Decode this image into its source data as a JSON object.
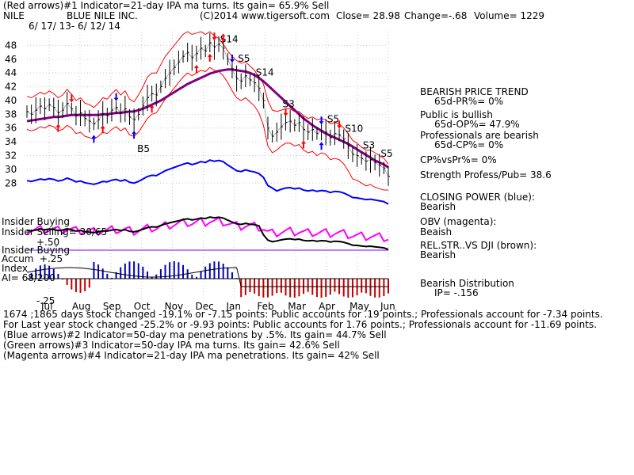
{
  "header": {
    "line1": "(Red arrows)#1 Indicator=21-day IPA ma turns. Its gain= 65.9% Sell",
    "ticker": "NILE",
    "company": "BLUE NILE INC.",
    "copyright": "(C)2014 www.tigersoft.com",
    "close": "Close=  28.98",
    "change": "Change=-.68",
    "volume": "Volume= 1229",
    "date_range": "6/ 17/ 13-  6/ 12/ 14"
  },
  "chart_data": {
    "type": "line",
    "title": "BLUE NILE INC.",
    "xlabel": "",
    "ylabel": "",
    "ylim": [
      27,
      50
    ],
    "yticks": [
      28,
      30,
      32,
      34,
      36,
      38,
      40,
      42,
      44,
      46,
      48
    ],
    "months": [
      "Jul",
      "Aug",
      "Sep",
      "Oct",
      "Nov",
      "Dec",
      "Jan",
      "Feb",
      "Mar",
      "Apr",
      "May",
      "Jun"
    ],
    "price_close": [
      38.4,
      38.0,
      38.6,
      39.2,
      38.8,
      39.4,
      39.0,
      38.2,
      38.6,
      39.6,
      38.8,
      37.8,
      38.2,
      37.4,
      37.0,
      36.6,
      37.2,
      38.0,
      37.8,
      38.6,
      39.0,
      38.2,
      38.8,
      37.6,
      37.2,
      38.0,
      39.2,
      40.4,
      41.0,
      40.8,
      42.0,
      43.2,
      44.0,
      44.8,
      45.6,
      46.4,
      47.0,
      46.2,
      46.8,
      47.6,
      47.2,
      48.4,
      47.8,
      48.2,
      47.6,
      46.0,
      44.6,
      43.2,
      42.8,
      43.6,
      43.0,
      42.6,
      41.8,
      40.0,
      36.0,
      34.8,
      35.4,
      36.2,
      36.8,
      37.0,
      36.4,
      36.8,
      35.8,
      35.4,
      35.8,
      35.2,
      35.6,
      35.4,
      34.6,
      35.2,
      35.0,
      34.4,
      33.4,
      32.2,
      32.0,
      31.6,
      31.2,
      31.4,
      31.0,
      30.6,
      30.2,
      29.0
    ],
    "ma_21d_upper_band": [
      40.6,
      40.4,
      40.8,
      41.2,
      40.9,
      41.4,
      41.0,
      40.4,
      40.8,
      41.6,
      40.9,
      40.0,
      40.4,
      39.6,
      39.4,
      39.0,
      39.6,
      40.4,
      40.2,
      41.0,
      41.6,
      40.8,
      41.4,
      40.2,
      39.8,
      40.8,
      42.0,
      43.4,
      44.0,
      44.0,
      45.2,
      46.4,
      47.2,
      48.0,
      48.8,
      49.6,
      50.0,
      49.6,
      49.8,
      50.0,
      49.6,
      50.0,
      49.4,
      49.0,
      48.2,
      47.2,
      46.4,
      45.8,
      45.4,
      45.6,
      45.0,
      44.4,
      43.4,
      42.4,
      40.0,
      38.6,
      38.4,
      38.6,
      38.8,
      38.8,
      38.4,
      38.4,
      37.8,
      37.4,
      37.6,
      37.2,
      37.4,
      37.2,
      36.6,
      36.8,
      36.6,
      36.0,
      35.2,
      34.2,
      33.8,
      33.2,
      32.8,
      32.8,
      32.4,
      32.0,
      31.6,
      30.8
    ],
    "ma_21d_lower_band": [
      35.8,
      35.6,
      35.8,
      36.2,
      36.0,
      36.4,
      36.2,
      35.6,
      35.8,
      36.4,
      36.0,
      35.2,
      35.4,
      34.8,
      34.6,
      34.4,
      34.8,
      35.4,
      35.2,
      35.8,
      36.2,
      35.6,
      36.0,
      35.0,
      34.8,
      35.4,
      36.4,
      37.4,
      38.0,
      38.2,
      39.2,
      40.2,
      41.0,
      41.8,
      42.6,
      43.4,
      44.0,
      43.6,
      44.0,
      44.4,
      44.2,
      44.8,
      44.4,
      44.2,
      43.6,
      42.6,
      41.4,
      40.4,
      40.0,
      40.4,
      39.8,
      39.2,
      38.2,
      36.4,
      33.4,
      32.4,
      32.8,
      33.4,
      33.8,
      33.8,
      33.4,
      33.6,
      32.8,
      32.4,
      32.6,
      32.0,
      32.4,
      32.2,
      31.4,
      31.6,
      31.4,
      30.8,
      29.8,
      28.6,
      28.4,
      28.0,
      27.6,
      27.8,
      27.4,
      27.2,
      27.0,
      27.0
    ],
    "ma_65d": [
      37.0,
      37.1,
      37.2,
      37.3,
      37.4,
      37.5,
      37.6,
      37.6,
      37.7,
      37.8,
      37.9,
      37.9,
      37.9,
      37.9,
      37.9,
      37.9,
      37.9,
      38.0,
      38.0,
      38.1,
      38.2,
      38.2,
      38.3,
      38.4,
      38.4,
      38.6,
      38.8,
      39.1,
      39.4,
      39.7,
      40.0,
      40.4,
      40.8,
      41.2,
      41.6,
      42.0,
      42.4,
      42.7,
      43.0,
      43.3,
      43.6,
      43.9,
      44.1,
      44.3,
      44.4,
      44.5,
      44.5,
      44.4,
      44.3,
      44.2,
      44.0,
      43.7,
      43.3,
      42.8,
      42.2,
      41.6,
      41.0,
      40.4,
      39.8,
      39.2,
      38.6,
      38.0,
      37.4,
      36.9,
      36.4,
      36.0,
      35.6,
      35.2,
      34.9,
      34.6,
      34.3,
      34.0,
      33.7,
      33.3,
      32.9,
      32.5,
      32.1,
      31.7,
      31.3,
      31.0,
      30.7,
      30.3
    ],
    "sell_labels": [
      "S14",
      "S5",
      "S14",
      "S3",
      "S5",
      "S10",
      "S3",
      "S5"
    ],
    "buy_labels": [
      "B5"
    ],
    "panels": [
      "Closing Power (blue)",
      "OBV (magenta)",
      "Rel.Str. vs DJI (brown)",
      "Accum Index"
    ]
  },
  "panel_labels": {
    "insider_buying": "Insider Buying",
    "insider_selling": "Insider Selling= 30/65",
    "insider_buying2": "Insider Buying",
    "accum": "Accum",
    "accum_level": "+.25",
    "plus50": "+.50",
    "index": "Index",
    "ai": "AI= 68/200",
    "minus25": "-.25"
  },
  "sidebar": {
    "trend": "BEARISH PRICE TREND",
    "pr": "65d-PR%= 0%",
    "public": "Public is bullish",
    "op": "65d-OP%= 47.9%",
    "pros": "Professionals are bearish",
    "cp": "65d-CP%= 0%",
    "cpvspr": "CP%vsPr%=  0%",
    "strength": "Strength Profess/Pub= 38.6",
    "closing_power": "CLOSING POWER (blue):",
    "closing_power_val": "Bearish",
    "obv": "OBV (magenta):",
    "obv_val": "Beaish",
    "relstr": "REL.STR..VS DJI (brown):",
    "relstr_val": "Bearish",
    "dist": "Bearish Distribution",
    "ip": "IP= -.156"
  },
  "stats": {
    "line1": "1674 ;1865 days stock changed -19.1% or -7.15 points:  Public accounts for  .19 points.;  Professionals account for -7.34 points.",
    "line2": "For Last year stock changed -25.2% or -9.93 points:  Public accounts for  1.76 points.;  Professionals account for -11.69 points.",
    "line3": "(Blue arrows)#2 Indicator=50-day ma penetrations by .5%. Its gain= 44.7% Sell",
    "line4": "(Green arrows)#3 Indicator=50-day IPA ma turns. Its gain= 42.6% Sell",
    "line5": "(Magenta arrows)#4 Indicator=21-day IPA ma penetrations. Its gain= 42% Sell"
  },
  "colors": {
    "price": "#000000",
    "band": "#ff0000",
    "ma65": "#800080",
    "closing_power": "#0000ff",
    "obv": "#ff00ff",
    "relstr": "#000000",
    "accum_pos": "#0000c0",
    "accum_neg": "#c00000",
    "sell_arrow": "#ff0000",
    "buy_arrow": "#0000ff"
  }
}
